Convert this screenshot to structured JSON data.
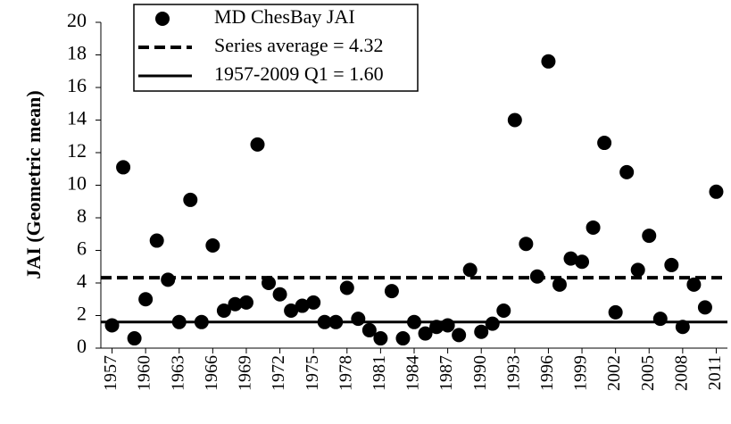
{
  "chart_data": {
    "type": "scatter",
    "ylabel": "JAI (Geometric mean)",
    "x": [
      1957,
      1958,
      1959,
      1960,
      1961,
      1962,
      1963,
      1964,
      1965,
      1966,
      1967,
      1968,
      1969,
      1970,
      1971,
      1972,
      1973,
      1974,
      1975,
      1976,
      1977,
      1978,
      1979,
      1980,
      1981,
      1982,
      1983,
      1984,
      1985,
      1986,
      1987,
      1988,
      1989,
      1990,
      1991,
      1992,
      1993,
      1994,
      1995,
      1996,
      1997,
      1998,
      1999,
      2000,
      2001,
      2002,
      2003,
      2004,
      2005,
      2006,
      2007,
      2008,
      2009,
      2010,
      2011
    ],
    "series": [
      {
        "name": "MD ChesBay JAI",
        "color": "#000000",
        "values": [
          1.4,
          11.1,
          0.6,
          3.0,
          6.6,
          4.2,
          1.6,
          9.1,
          1.6,
          6.3,
          2.3,
          2.7,
          2.8,
          12.5,
          4.0,
          3.3,
          2.3,
          2.6,
          2.8,
          1.6,
          1.6,
          3.7,
          1.8,
          1.1,
          0.6,
          3.5,
          0.6,
          1.6,
          0.9,
          1.3,
          1.4,
          0.8,
          4.8,
          1.0,
          1.5,
          2.3,
          14.0,
          6.4,
          4.4,
          17.6,
          3.9,
          5.5,
          5.3,
          7.4,
          12.6,
          2.2,
          10.8,
          4.8,
          6.9,
          1.8,
          5.1,
          1.3,
          3.9,
          2.5,
          9.6
        ]
      }
    ],
    "reference_lines": [
      {
        "name": "Series average = 4.32",
        "value": 4.32,
        "style": "dashed",
        "color": "#000000"
      },
      {
        "name": "1957-2009 Q1 = 1.60",
        "value": 1.6,
        "style": "solid",
        "color": "#000000"
      }
    ],
    "xlim": [
      1956,
      2012
    ],
    "xticks": [
      1957,
      1960,
      1963,
      1966,
      1969,
      1972,
      1975,
      1978,
      1981,
      1984,
      1987,
      1990,
      1993,
      1996,
      1999,
      2002,
      2005,
      2008,
      2011
    ],
    "ylim": [
      0,
      20
    ],
    "yticks": [
      0,
      2,
      4,
      6,
      8,
      10,
      12,
      14,
      16,
      18,
      20
    ],
    "legend": "top-left"
  }
}
